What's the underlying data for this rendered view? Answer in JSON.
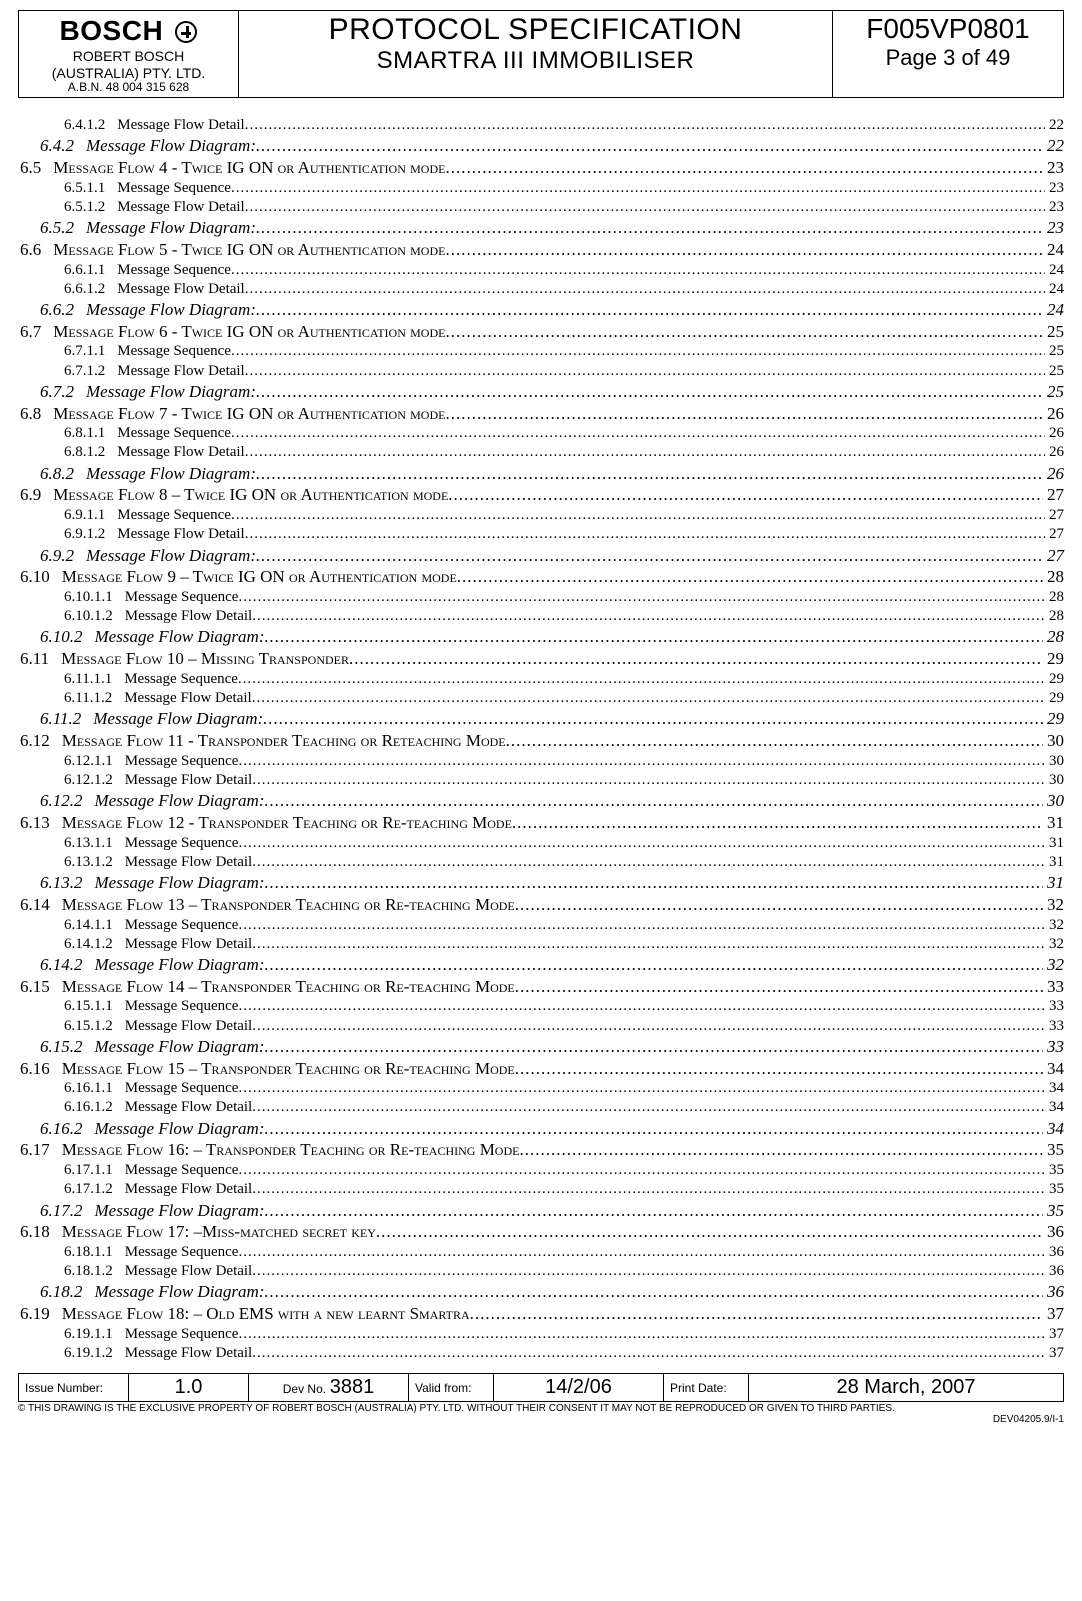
{
  "header": {
    "logo_text": "BOSCH",
    "company_line1": "ROBERT BOSCH",
    "company_line2": "(AUSTRALIA) PTY. LTD.",
    "abn": "A.B.N. 48 004 315 628",
    "title_line1": "PROTOCOL SPECIFICATION",
    "title_line2": "SMARTRA III IMMOBILISER",
    "doc_no": "F005VP0801",
    "page_of": "Page 3 of 49"
  },
  "toc": [
    {
      "lvl": 3,
      "num": "6.4.1.2",
      "label": "Message Flow Detail",
      "page": "22"
    },
    {
      "lvl": 2,
      "num": "6.4.2",
      "label": "Message Flow Diagram:",
      "page": "22"
    },
    {
      "lvl": 1,
      "num": "6.5",
      "label": "Message Flow 4 - Twice IG ON or Authentication mode",
      "page": "23"
    },
    {
      "lvl": 3,
      "num": "6.5.1.1",
      "label": "Message Sequence",
      "page": "23"
    },
    {
      "lvl": 3,
      "num": "6.5.1.2",
      "label": "Message Flow Detail",
      "page": "23"
    },
    {
      "lvl": 2,
      "num": "6.5.2",
      "label": "Message Flow Diagram:",
      "page": "23"
    },
    {
      "lvl": 1,
      "num": "6.6",
      "label": "Message Flow 5 - Twice IG ON or Authentication mode",
      "page": "24"
    },
    {
      "lvl": 3,
      "num": "6.6.1.1",
      "label": "Message Sequence",
      "page": "24"
    },
    {
      "lvl": 3,
      "num": "6.6.1.2",
      "label": "Message Flow Detail",
      "page": "24"
    },
    {
      "lvl": 2,
      "num": "6.6.2",
      "label": "Message Flow Diagram:",
      "page": "24"
    },
    {
      "lvl": 1,
      "num": "6.7",
      "label": "Message Flow 6 - Twice IG ON or Authentication mode",
      "page": "25"
    },
    {
      "lvl": 3,
      "num": "6.7.1.1",
      "label": "Message Sequence",
      "page": "25"
    },
    {
      "lvl": 3,
      "num": "6.7.1.2",
      "label": "Message Flow Detail",
      "page": "25"
    },
    {
      "lvl": 2,
      "num": "6.7.2",
      "label": "Message Flow Diagram:",
      "page": "25"
    },
    {
      "lvl": 1,
      "num": "6.8",
      "label": "Message Flow 7 - Twice IG ON or Authentication mode",
      "page": "26"
    },
    {
      "lvl": 3,
      "num": "6.8.1.1",
      "label": "Message Sequence",
      "page": "26"
    },
    {
      "lvl": 3,
      "num": "6.8.1.2",
      "label": "Message Flow Detail",
      "page": "26"
    },
    {
      "lvl": 2,
      "num": "6.8.2",
      "label": "Message Flow Diagram:",
      "page": "26"
    },
    {
      "lvl": 1,
      "num": "6.9",
      "label": "Message Flow 8 – Twice IG ON or Authentication mode",
      "page": "27"
    },
    {
      "lvl": 3,
      "num": "6.9.1.1",
      "label": "Message Sequence",
      "page": "27"
    },
    {
      "lvl": 3,
      "num": "6.9.1.2",
      "label": "Message Flow Detail",
      "page": "27"
    },
    {
      "lvl": 2,
      "num": "6.9.2",
      "label": "Message Flow Diagram:",
      "page": "27"
    },
    {
      "lvl": 1,
      "num": "6.10",
      "label": "Message Flow 9 – Twice IG ON or Authentication mode",
      "page": "28"
    },
    {
      "lvl": 3,
      "num": "6.10.1.1",
      "label": "Message Sequence",
      "page": "28"
    },
    {
      "lvl": 3,
      "num": "6.10.1.2",
      "label": "Message Flow Detail",
      "page": "28"
    },
    {
      "lvl": 2,
      "num": "6.10.2",
      "label": "Message Flow Diagram:",
      "page": "28"
    },
    {
      "lvl": 1,
      "num": "6.11",
      "label": "Message Flow 10 – Missing Transponder",
      "page": "29"
    },
    {
      "lvl": 3,
      "num": "6.11.1.1",
      "label": "Message Sequence",
      "page": "29"
    },
    {
      "lvl": 3,
      "num": "6.11.1.2",
      "label": "Message Flow Detail",
      "page": "29"
    },
    {
      "lvl": 2,
      "num": "6.11.2",
      "label": "Message Flow Diagram:",
      "page": "29"
    },
    {
      "lvl": 1,
      "num": "6.12",
      "label": "Message Flow 11 - Transponder Teaching or Reteaching Mode",
      "page": "30"
    },
    {
      "lvl": 3,
      "num": "6.12.1.1",
      "label": "Message Sequence",
      "page": "30"
    },
    {
      "lvl": 3,
      "num": "6.12.1.2",
      "label": "Message Flow Detail",
      "page": "30"
    },
    {
      "lvl": 2,
      "num": "6.12.2",
      "label": "Message Flow Diagram:",
      "page": "30"
    },
    {
      "lvl": 1,
      "num": "6.13",
      "label": "Message Flow 12 - Transponder Teaching or Re-teaching Mode",
      "page": "31"
    },
    {
      "lvl": 3,
      "num": "6.13.1.1",
      "label": "Message Sequence",
      "page": "31"
    },
    {
      "lvl": 3,
      "num": "6.13.1.2",
      "label": "Message Flow Detail",
      "page": "31"
    },
    {
      "lvl": 2,
      "num": "6.13.2",
      "label": "Message Flow Diagram:",
      "page": "31"
    },
    {
      "lvl": 1,
      "num": "6.14",
      "label": "Message Flow 13 – Transponder Teaching or Re-teaching Mode",
      "page": "32"
    },
    {
      "lvl": 3,
      "num": "6.14.1.1",
      "label": "Message Sequence",
      "page": "32"
    },
    {
      "lvl": 3,
      "num": "6.14.1.2",
      "label": "Message Flow Detail",
      "page": "32"
    },
    {
      "lvl": 2,
      "num": "6.14.2",
      "label": "Message Flow Diagram:",
      "page": "32"
    },
    {
      "lvl": 1,
      "num": "6.15",
      "label": "Message Flow 14 – Transponder Teaching or Re-teaching Mode",
      "page": "33"
    },
    {
      "lvl": 3,
      "num": "6.15.1.1",
      "label": "Message Sequence",
      "page": "33"
    },
    {
      "lvl": 3,
      "num": "6.15.1.2",
      "label": "Message Flow Detail",
      "page": "33"
    },
    {
      "lvl": 2,
      "num": "6.15.2",
      "label": "Message Flow Diagram:",
      "page": "33"
    },
    {
      "lvl": 1,
      "num": "6.16",
      "label": "Message Flow 15 – Transponder Teaching or Re-teaching Mode",
      "page": "34"
    },
    {
      "lvl": 3,
      "num": "6.16.1.1",
      "label": "Message Sequence",
      "page": "34"
    },
    {
      "lvl": 3,
      "num": "6.16.1.2",
      "label": "Message Flow Detail",
      "page": "34"
    },
    {
      "lvl": 2,
      "num": "6.16.2",
      "label": "Message Flow Diagram:",
      "page": "34"
    },
    {
      "lvl": 1,
      "num": "6.17",
      "label": "Message Flow 16: – Transponder Teaching or Re-teaching Mode",
      "page": "35"
    },
    {
      "lvl": 3,
      "num": "6.17.1.1",
      "label": "Message Sequence",
      "page": "35"
    },
    {
      "lvl": 3,
      "num": "6.17.1.2",
      "label": "Message Flow Detail",
      "page": "35"
    },
    {
      "lvl": 2,
      "num": "6.17.2",
      "label": "Message Flow Diagram:",
      "page": "35"
    },
    {
      "lvl": 1,
      "num": "6.18",
      "label": "Message Flow 17: –Miss-matched secret key",
      "page": "36"
    },
    {
      "lvl": 3,
      "num": "6.18.1.1",
      "label": "Message Sequence",
      "page": "36"
    },
    {
      "lvl": 3,
      "num": "6.18.1.2",
      "label": "Message Flow Detail",
      "page": "36"
    },
    {
      "lvl": 2,
      "num": "6.18.2",
      "label": "Message Flow Diagram:",
      "page": "36"
    },
    {
      "lvl": 1,
      "num": "6.19",
      "label": "Message Flow 18: – Old EMS with a new learnt Smartra",
      "page": "37"
    },
    {
      "lvl": 3,
      "num": "6.19.1.1",
      "label": "Message Sequence",
      "page": "37"
    },
    {
      "lvl": 3,
      "num": "6.19.1.2",
      "label": "Message Flow Detail",
      "page": "37"
    }
  ],
  "footer": {
    "issue_label": "Issue Number:",
    "issue_value": "1.0",
    "devno_label": "Dev No.",
    "devno_value": "3881",
    "valid_label": "Valid from:",
    "valid_value": "14/2/06",
    "print_label": "Print Date:",
    "print_value": "28 March, 2007",
    "copyright": "© THIS DRAWING IS THE EXCLUSIVE PROPERTY OF ROBERT  BOSCH (AUSTRALIA)  PTY. LTD.  WITHOUT THEIR CONSENT IT MAY NOT BE REPRODUCED OR GIVEN TO THIRD PARTIES.",
    "formno": "DEV04205.9/I-1"
  }
}
